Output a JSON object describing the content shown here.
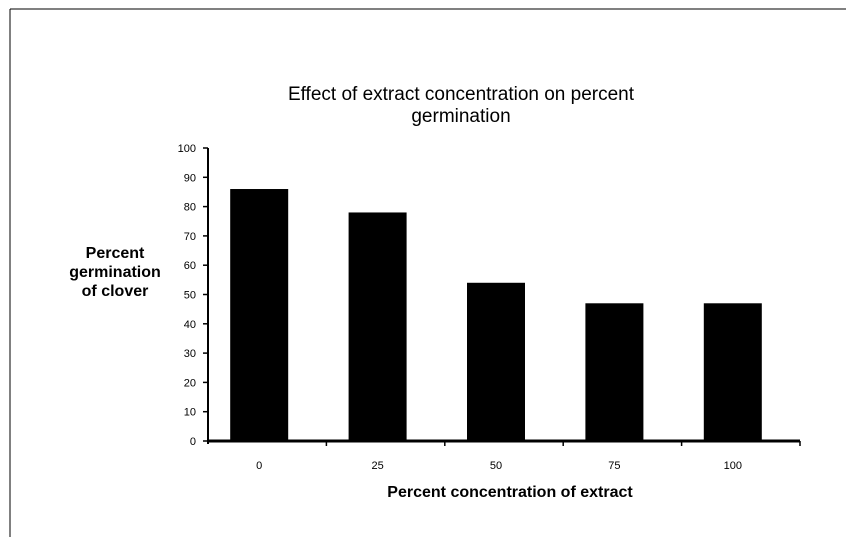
{
  "chart_data": {
    "type": "bar",
    "title_lines": [
      "Effect of extract concentration on percent",
      "germination"
    ],
    "xlabel": "Percent concentration of extract",
    "ylabel_lines": [
      "Percent",
      "germination",
      "of clover"
    ],
    "categories": [
      "0",
      "25",
      "50",
      "75",
      "100"
    ],
    "values": [
      86,
      78,
      54,
      47,
      47
    ],
    "ylim": [
      0,
      100
    ],
    "yticks": [
      0,
      10,
      20,
      30,
      40,
      50,
      60,
      70,
      80,
      90,
      100
    ],
    "grid": false,
    "legend": "none",
    "bar_color": "#000000"
  }
}
